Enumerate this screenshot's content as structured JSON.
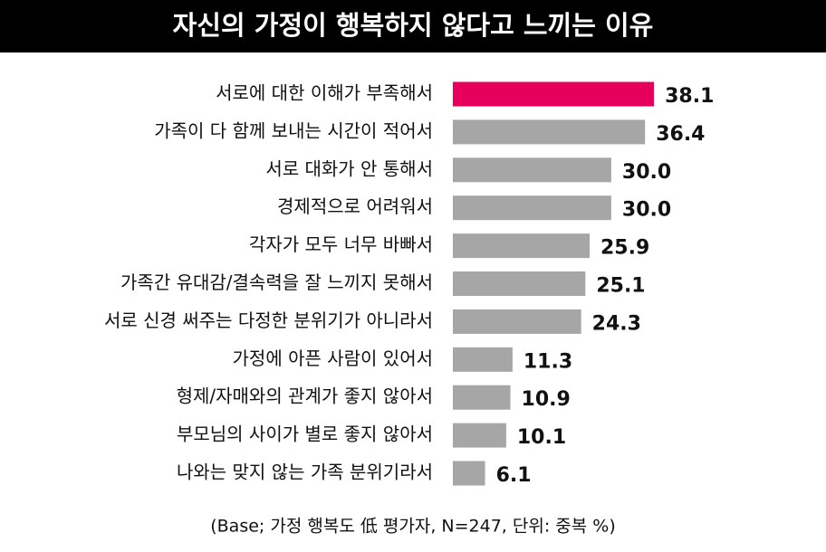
{
  "chart_data": {
    "type": "bar",
    "orientation": "horizontal",
    "title": "자신의 가정이 행복하지 않다고 느끼는 이유",
    "categories": [
      "서로에 대한 이해가 부족해서",
      "가족이 다 함께 보내는 시간이 적어서",
      "서로 대화가 안 통해서",
      "경제적으로 어려워서",
      "각자가 모두 너무 바빠서",
      "가족간 유대감/결속력을 잘 느끼지 못해서",
      "서로 신경 써주는 다정한 분위기가 아니라서",
      "가정에 아픈 사람이 있어서",
      "형제/자매와의 관계가 좋지 않아서",
      "부모님의 사이가 별로 좋지 않아서",
      "나와는 맞지 않는 가족 분위기라서"
    ],
    "values": [
      38.1,
      36.4,
      30.0,
      30.0,
      25.9,
      25.1,
      24.3,
      11.3,
      10.9,
      10.1,
      6.1
    ],
    "value_labels": [
      "38.1",
      "36.4",
      "30.0",
      "30.0",
      "25.9",
      "25.1",
      "24.3",
      "11.3",
      "10.9",
      "10.1",
      "6.1"
    ],
    "colors": [
      "#e6005c",
      "#a6a6a6",
      "#a6a6a6",
      "#a6a6a6",
      "#a6a6a6",
      "#a6a6a6",
      "#a6a6a6",
      "#a6a6a6",
      "#a6a6a6",
      "#a6a6a6",
      "#a6a6a6"
    ],
    "note": "(Base; 가정 행복도 低 평가자, N=247, 단위: 중복 %)"
  }
}
